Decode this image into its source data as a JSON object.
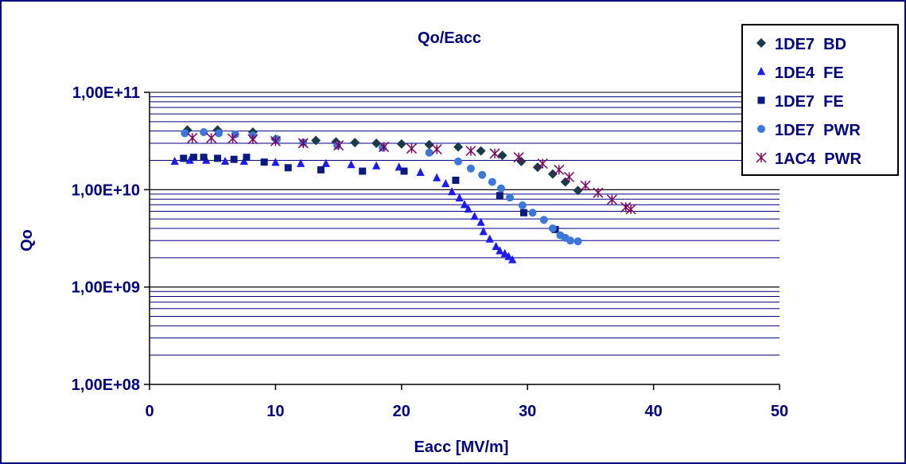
{
  "chart_data": {
    "type": "scatter",
    "title": "Qo/Eacc",
    "xlabel": "Eacc [MV/m]",
    "ylabel": "Qo",
    "xlim": [
      0,
      50
    ],
    "ylim": [
      100000000,
      100000000000
    ],
    "y_scale": "log",
    "grid": "horizontal major and minor",
    "legend_position": "top-right",
    "x_ticks": [
      "0",
      "10",
      "20",
      "30",
      "40",
      "50"
    ],
    "y_ticks": [
      "1,00E+08",
      "1,00E+09",
      "1,00E+10",
      "1,00E+11"
    ],
    "series": [
      {
        "name": "1DE7  BD",
        "marker": "diamond",
        "color": "#1b3a4b",
        "points": [
          [
            3.0,
            41000000000.0
          ],
          [
            5.4,
            41000000000.0
          ],
          [
            8.2,
            39000000000.0
          ],
          [
            10.0,
            33000000000.0
          ],
          [
            13.2,
            32000000000.0
          ],
          [
            14.8,
            31000000000.0
          ],
          [
            16.3,
            30500000000.0
          ],
          [
            18.0,
            30000000000.0
          ],
          [
            20.0,
            29500000000.0
          ],
          [
            22.2,
            29000000000.0
          ],
          [
            24.5,
            27500000000.0
          ],
          [
            26.3,
            25000000000.0
          ],
          [
            28.0,
            22500000000.0
          ],
          [
            29.5,
            19500000000.0
          ],
          [
            30.8,
            17000000000.0
          ],
          [
            32.0,
            14500000000.0
          ],
          [
            33.0,
            12000000000.0
          ],
          [
            34.0,
            9800000000.0
          ]
        ]
      },
      {
        "name": "1DE4  FE",
        "marker": "triangle",
        "color": "#1c1cf0",
        "points": [
          [
            2.0,
            19500000000.0
          ],
          [
            3.2,
            20000000000.0
          ],
          [
            4.5,
            20000000000.0
          ],
          [
            6.0,
            19500000000.0
          ],
          [
            7.5,
            19500000000.0
          ],
          [
            10.0,
            19000000000.0
          ],
          [
            12.0,
            18500000000.0
          ],
          [
            14.0,
            18500000000.0
          ],
          [
            16.0,
            18000000000.0
          ],
          [
            18.0,
            17500000000.0
          ],
          [
            19.8,
            17000000000.0
          ],
          [
            21.5,
            15000000000.0
          ],
          [
            22.8,
            13200000000.0
          ],
          [
            23.5,
            11500000000.0
          ],
          [
            24.0,
            9500000000.0
          ],
          [
            24.6,
            8200000000.0
          ],
          [
            25.0,
            7000000000.0
          ],
          [
            25.3,
            6300000000.0
          ],
          [
            25.8,
            5300000000.0
          ],
          [
            26.3,
            4600000000.0
          ],
          [
            26.5,
            3700000000.0
          ],
          [
            27.0,
            3100000000.0
          ],
          [
            27.5,
            2600000000.0
          ],
          [
            27.8,
            2350000000.0
          ],
          [
            28.2,
            2200000000.0
          ],
          [
            28.5,
            2050000000.0
          ],
          [
            28.8,
            1900000000.0
          ]
        ]
      },
      {
        "name": "1DE7  FE",
        "marker": "square",
        "color": "#0a1a80",
        "points": [
          [
            2.7,
            21000000000.0
          ],
          [
            3.5,
            21500000000.0
          ],
          [
            4.3,
            21500000000.0
          ],
          [
            5.4,
            21000000000.0
          ],
          [
            6.7,
            20500000000.0
          ],
          [
            7.7,
            21500000000.0
          ],
          [
            9.1,
            19200000000.0
          ],
          [
            11.0,
            16800000000.0
          ],
          [
            13.6,
            16000000000.0
          ],
          [
            16.9,
            15500000000.0
          ],
          [
            20.2,
            15500000000.0
          ],
          [
            24.3,
            12500000000.0
          ],
          [
            27.8,
            8700000000.0
          ],
          [
            29.7,
            5800000000.0
          ],
          [
            32.2,
            3900000000.0
          ]
        ]
      },
      {
        "name": "1DE7  PWR",
        "marker": "circle",
        "color": "#3c78dc",
        "points": [
          [
            2.8,
            38000000000.0
          ],
          [
            4.3,
            39000000000.0
          ],
          [
            5.5,
            38000000000.0
          ],
          [
            6.8,
            37000000000.0
          ],
          [
            8.2,
            36000000000.0
          ],
          [
            10.1,
            33000000000.0
          ],
          [
            12.2,
            30500000000.0
          ],
          [
            14.9,
            28500000000.0
          ],
          [
            18.5,
            27000000000.0
          ],
          [
            22.2,
            24000000000.0
          ],
          [
            24.5,
            19500000000.0
          ],
          [
            25.5,
            16500000000.0
          ],
          [
            26.4,
            14200000000.0
          ],
          [
            27.2,
            12000000000.0
          ],
          [
            27.9,
            10300000000.0
          ],
          [
            28.6,
            8300000000.0
          ],
          [
            29.6,
            6900000000.0
          ],
          [
            30.4,
            5800000000.0
          ],
          [
            31.3,
            4900000000.0
          ],
          [
            32.0,
            4000000000.0
          ],
          [
            32.6,
            3400000000.0
          ],
          [
            33.0,
            3200000000.0
          ],
          [
            33.4,
            3000000000.0
          ],
          [
            34.0,
            2950000000.0
          ]
        ]
      },
      {
        "name": "1AC4  PWR",
        "marker": "star",
        "color": "#800060",
        "points": [
          [
            3.4,
            34000000000.0
          ],
          [
            4.9,
            34000000000.0
          ],
          [
            6.6,
            33500000000.0
          ],
          [
            8.2,
            33000000000.0
          ],
          [
            10.0,
            31500000000.0
          ],
          [
            12.2,
            30000000000.0
          ],
          [
            15.0,
            28500000000.0
          ],
          [
            18.6,
            27500000000.0
          ],
          [
            20.8,
            26500000000.0
          ],
          [
            22.8,
            26000000000.0
          ],
          [
            25.5,
            25000000000.0
          ],
          [
            27.4,
            23500000000.0
          ],
          [
            29.3,
            21500000000.0
          ],
          [
            31.2,
            18500000000.0
          ],
          [
            32.5,
            16000000000.0
          ],
          [
            33.3,
            13500000000.0
          ],
          [
            34.6,
            11000000000.0
          ],
          [
            35.6,
            9300000000.0
          ],
          [
            36.7,
            7900000000.0
          ],
          [
            37.8,
            6600000000.0
          ],
          [
            38.2,
            6300000000.0
          ]
        ]
      }
    ]
  }
}
